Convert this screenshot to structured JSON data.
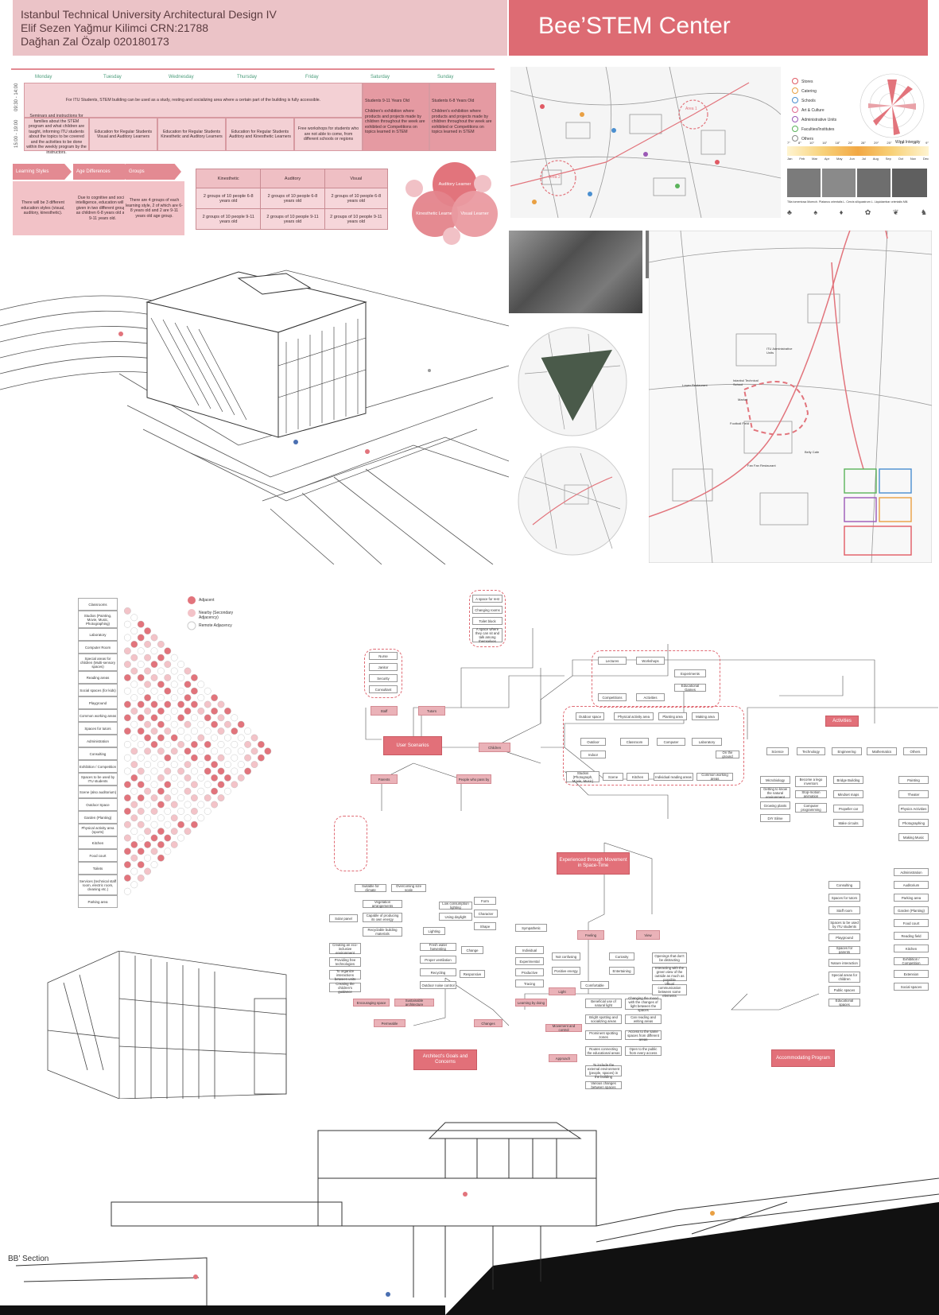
{
  "header": {
    "line1": "Istanbul Technical University Architectural Design IV",
    "line2": "Elif Sezen Yağmur Kilimci  CRN:21788",
    "line3": "Dağhan Zal Özalp 020180173",
    "title": "Bee’STEM Center"
  },
  "schedule": {
    "days": [
      "Monday",
      "Tuesday",
      "Wednesday",
      "Thursday",
      "Friday",
      "Saturday",
      "Sunday"
    ],
    "time1": "09:30 - 14:00",
    "time2": "15:00 - 19:00",
    "morning": "For ITU Students, STEM building can be used as a study, resting and socializing area where a certain part of the building is fully accessible.",
    "afternoon": [
      "Seminars and instructions for families about the STEM program and what children are taught, informing ITU students about the topics to be covered and the activities to be done within the weekly program by the instructors.",
      "Education for Regular Students Visual and Auditory Learners",
      "Education for Regular Students Kinesthetic and Auditory Learners",
      "Education for Regular Students Auditory and Kinesthetic Learners",
      "Free workshops for students who are not able to come, from different schools or regions"
    ],
    "sat_title": "Students 9-11 Years Old",
    "sat_text": "Children's exhibition where products and projects made by children throughout the week are exhibited or Competitions on topics learned in STEM",
    "sun_title": "Students 6-8 Years Old",
    "sun_text": "Children's exhibition where products and projects made by children throughout the week are exhibited or Competitions on topics learned in STEM"
  },
  "learning": {
    "tabs": [
      "Learning Styles",
      "Age Differences",
      "Groups"
    ],
    "box1": "There will be 3 different education styles (visual, auditory, kinesthetic).",
    "box2": "Due to cognitive and social intelligence, education will be given in two different groups, as children 6-8 years old and 9-11 years old.",
    "box3": "There are 4 groups of each learning style, 2 of which are 6-8 years old and 2 are 9-11 years old age group.",
    "table_head": [
      "Kinesthetic",
      "Auditory",
      "Visual"
    ],
    "row1": [
      "2 groups of 10 people 6-8 years old",
      "2 groups of 10 people 6-8 years old",
      "2 groups of 10 people 6-8 years old"
    ],
    "row2": [
      "2 groups of 10 people 9-11 years old",
      "2 groups of 10 people 9-11 years old",
      "2 groups of 10 people 9-11 years old"
    ],
    "venn": [
      "Auditory Learner",
      "Kinesthetic Learner",
      "Visual Learner"
    ]
  },
  "site": {
    "legend": [
      "Stores",
      "Catering",
      "Schools",
      "Art & Culture",
      "Administrative Units",
      "Faculties/Institutes",
      "Others"
    ],
    "area1": "Area 1",
    "area2": "Area 2",
    "wind_label": "Wind Intensity",
    "months": [
      "Jan",
      "Feb",
      "Mar",
      "Apr",
      "May",
      "Jun",
      "Jul",
      "Aug",
      "Sep",
      "Oct",
      "Nov",
      "Dec"
    ],
    "temps": [
      "7°",
      "8°",
      "10°",
      "16°",
      "18°",
      "24°",
      "28°",
      "29°",
      "25°",
      "19°",
      "14°",
      "9°"
    ],
    "trees": "Tilia tomentosa Moench.  Platanus orientalis L.  Cercis siliquastrum L.  Liquidambar orientalis Mill.",
    "map_labels": [
      "ITU Administrative Units",
      "Istanbul Technical School",
      "Market",
      "Lower Restaurant",
      "Football Field",
      "Fan Fan Restaurant",
      "Belly Cafe"
    ]
  },
  "matrix": {
    "legend": [
      "Adjacent",
      "Nearby (Secondary Adjacency)",
      "Remote Adjacency"
    ],
    "spaces": [
      "Classrooms",
      "Studios (Painting, Movie, Music, Photographing)",
      "Laboratory",
      "Computer Room",
      "Special areas for children (Multi-sensory spaces)",
      "Reading areas",
      "Social spaces (for kids)",
      "Playground",
      "Common working areas",
      "Spaces for tutors",
      "Administration",
      "Consulting",
      "Exhibition / Competition",
      "Spaces to be used by ITU students",
      "Scene (also auditorium)",
      "Outdoor Space",
      "Garden (Planting)",
      "Physical activity area (sports)",
      "Kitchen",
      "Food court",
      "Toilets",
      "Services (technical staff room, electric room, cleaning etc.)",
      "Parking area"
    ]
  },
  "flow": {
    "center": "User Scenarios",
    "children": "Children",
    "staff": "Staff",
    "tutors": "Tutors",
    "parents": "Parents",
    "people": "People who pass by",
    "experienced": "Experienced through Movement in Space-Time",
    "feeling": "Feeling",
    "view": "View",
    "architect": "Architect's Goals and Concerns",
    "accommodating": "Accommodating Program",
    "activities": "Activities",
    "nodes_a": [
      "Nurse",
      "Janitor",
      "Security",
      "Consultant"
    ],
    "nodes_b": [
      "A space for rest",
      "Changing rooms",
      "Toilet block",
      "A space where they can sit and talk among themselves"
    ],
    "nodes_c": [
      "Lectures",
      "Workshops",
      "Experiments",
      "Competitions",
      "Educational Games",
      "Activities"
    ],
    "nodes_d": [
      "Outdoor space",
      "Physical activity area",
      "Planting area",
      "Making area",
      "Outdoor",
      "Classroom",
      "Computer",
      "Laboratory",
      "Indoor",
      "On the ground",
      "Studios (Photograph, Movie, Music)",
      "Scene",
      "Kitchen",
      "Individual reading areas",
      "Common working areas"
    ],
    "subjects": [
      "Science",
      "Technology",
      "Engineering",
      "Mathematics",
      "Others"
    ],
    "subject_items": [
      "Microbiology",
      "Getting to know the natural environment",
      "Growing plants",
      "DIY Slime",
      "Become a lego inventors",
      "Stop-motion animation",
      "Computer programming",
      "Bridge Building",
      "Mindset maps",
      "Propeller car",
      "Make circuits",
      "Painting",
      "Theater",
      "Physics Activities",
      "Photographing",
      "Making Music"
    ],
    "accom": [
      "Consulting",
      "Spaces for tutors",
      "Staff room",
      "Spaces to be used by ITU students",
      "Playground",
      "Spaces for parents",
      "Nature interaction",
      "Special areas for children",
      "Public spaces",
      "Educational spaces",
      "Administration",
      "Auditorium",
      "Parking area",
      "Garden (Planting)",
      "Food court",
      "Reading field",
      "Kitchen",
      "Exhibition / Competition",
      "Extension",
      "Social spaces"
    ],
    "arch_nodes": [
      "Suitable for climate",
      "Overcoming size scale",
      "Vegetation arrangements",
      "Capable of producing its own energy",
      "Recyclable building materials",
      "Solar panel",
      "Creating an eco-inclusive environment",
      "Providing free technologies",
      "To organize interactions between units",
      "Creating the children's guidance",
      "Encouraging space",
      "Sustainable architecture",
      "Permeable",
      "Lighting",
      "Fresh water harvesting",
      "Proper ventilation",
      "Recycling",
      "Outdoor noise control",
      "Low consumption lighting",
      "Using daylight",
      "Form",
      "Character",
      "Shape",
      "Change",
      "Responsive",
      "Interactive",
      "Changes",
      "Sympathetic",
      "Individual",
      "Experimental",
      "Productive",
      "Tracing",
      "Learning by doing"
    ],
    "feel_nodes": [
      "Not confusing",
      "Positive energy",
      "Comfortable",
      "Curiosity",
      "Entertaining",
      "Openings that don't be distracting",
      "Interacting with the green view of the outside as much as possible",
      "Visual communication between some elements",
      "Light",
      "Movement and control",
      "Approach",
      "Beneficial use of natural light",
      "Bright spotting and socializing areas",
      "Prominent spotting zones",
      "Routes connecting the educational areas",
      "To include the external environment (people, spaces) in the building",
      "Changing the mood with the changes of light between the spaces",
      "Can reading and writing areas",
      "Access to the same spaces from different areas",
      "Open to the public from every access",
      "Various changes between spaces"
    ]
  },
  "section": {
    "label": "BB’ Section"
  }
}
